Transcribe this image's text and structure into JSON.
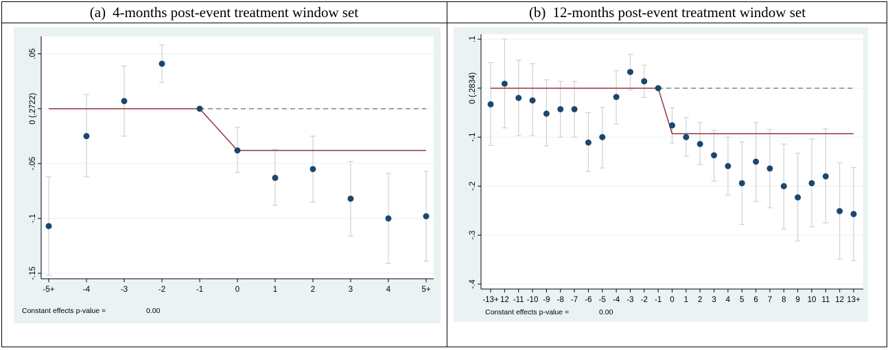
{
  "colors": {
    "panel_bg": "#eaf2f3",
    "plot_bg": "#ffffff",
    "grid": "#eaf2f3",
    "marker": "#1a476f",
    "ci": "#d0d0d0",
    "fit_line": "#90353b",
    "dashed_line": "#6e8e84"
  },
  "panels": [
    {
      "caption_label": "(a)",
      "caption_text": "4-months post-event treatment window set",
      "footnote_label": "Constant effects p-value =",
      "footnote_value": "0.00"
    },
    {
      "caption_label": "(b)",
      "caption_text": "12-months post-event treatment window set",
      "footnote_label": "Constant effects p-value =",
      "footnote_value": "0.00"
    }
  ],
  "chart_data": [
    {
      "type": "scatter",
      "categories": [
        "-5+",
        "-4",
        "-3",
        "-2",
        "-1",
        "0",
        "1",
        "2",
        "3",
        "4",
        "5+"
      ],
      "values": [
        -0.107,
        -0.025,
        0.007,
        0.041,
        0.0,
        -0.038,
        -0.063,
        -0.055,
        -0.082,
        -0.1,
        -0.098
      ],
      "ci_low": [
        -0.152,
        -0.062,
        -0.025,
        0.024,
        0.0,
        -0.058,
        -0.088,
        -0.085,
        -0.116,
        -0.141,
        -0.139
      ],
      "ci_high": [
        -0.062,
        0.013,
        0.039,
        0.058,
        0.0,
        -0.017,
        -0.037,
        -0.025,
        -0.048,
        -0.059,
        -0.057
      ],
      "fit_line": [
        0.0,
        0.0,
        0.0,
        0.0,
        0.0,
        -0.038,
        -0.038,
        -0.038,
        -0.038,
        -0.038,
        -0.038
      ],
      "fit_line_start": 0,
      "dashed_reference": 0.0,
      "dashed_from": 4,
      "yticks": [
        0.05,
        0.0,
        -0.05,
        -0.1,
        -0.15
      ],
      "ytick_labels": [
        ".05",
        "0 (.2722)",
        "-.05",
        "-.1",
        "-.15"
      ],
      "ylim": [
        -0.155,
        0.066
      ],
      "grid": true,
      "xlabel": "",
      "ylabel": ""
    },
    {
      "type": "scatter",
      "categories": [
        "-13+",
        "-12",
        "-11",
        "-10",
        "-9",
        "-8",
        "-7",
        "-6",
        "-5",
        "-4",
        "-3",
        "-2",
        "-1",
        "0",
        "1",
        "2",
        "3",
        "4",
        "5",
        "6",
        "7",
        "8",
        "9",
        "10",
        "11",
        "12",
        "13+"
      ],
      "category_labels": [
        "-13+",
        "12",
        "-11",
        "-10",
        "-9",
        "-8",
        "-7",
        "-6",
        "-5",
        "-4",
        "-3",
        "-2",
        "-1",
        "0",
        "1",
        "2",
        "3",
        "4",
        "5",
        "6",
        "7",
        "8",
        "9",
        "10",
        "11",
        "12",
        "13+"
      ],
      "values": [
        -0.033,
        0.009,
        -0.02,
        -0.025,
        -0.052,
        -0.043,
        -0.043,
        -0.111,
        -0.1,
        -0.018,
        0.033,
        0.014,
        0.0,
        -0.076,
        -0.1,
        -0.114,
        -0.137,
        -0.159,
        -0.194,
        -0.15,
        -0.164,
        -0.2,
        -0.223,
        -0.194,
        -0.18,
        -0.251,
        -0.257
      ],
      "ci_low": [
        -0.117,
        -0.081,
        -0.097,
        -0.097,
        -0.118,
        -0.1,
        -0.1,
        -0.17,
        -0.163,
        -0.073,
        -0.004,
        -0.019,
        0.0,
        -0.112,
        -0.139,
        -0.156,
        -0.19,
        -0.218,
        -0.278,
        -0.231,
        -0.244,
        -0.287,
        -0.312,
        -0.283,
        -0.275,
        -0.349,
        -0.352
      ],
      "ci_high": [
        0.052,
        0.1,
        0.057,
        0.05,
        0.017,
        0.014,
        0.014,
        -0.05,
        -0.039,
        0.036,
        0.069,
        0.047,
        0.0,
        -0.04,
        -0.06,
        -0.07,
        -0.086,
        -0.1,
        -0.11,
        -0.07,
        -0.084,
        -0.114,
        -0.133,
        -0.104,
        -0.083,
        -0.152,
        -0.162
      ],
      "fit_line": [
        0.0,
        0.0,
        0.0,
        0.0,
        0.0,
        0.0,
        0.0,
        0.0,
        0.0,
        0.0,
        0.0,
        0.0,
        0.0,
        -0.093,
        -0.093,
        -0.093,
        -0.093,
        -0.093,
        -0.093,
        -0.093,
        -0.093,
        -0.093,
        -0.093,
        -0.093,
        -0.093,
        -0.093,
        -0.093
      ],
      "fit_line_start": 0,
      "dashed_reference": 0.0,
      "dashed_from": 12,
      "yticks": [
        0.1,
        0.0,
        -0.1,
        -0.2,
        -0.3,
        -0.4
      ],
      "ytick_labels": [
        ".1",
        "0 (.2834)",
        "-.1",
        "-.2",
        "-.3",
        "-.4"
      ],
      "ylim": [
        -0.41,
        0.11
      ],
      "grid": true,
      "xlabel": "",
      "ylabel": ""
    }
  ]
}
